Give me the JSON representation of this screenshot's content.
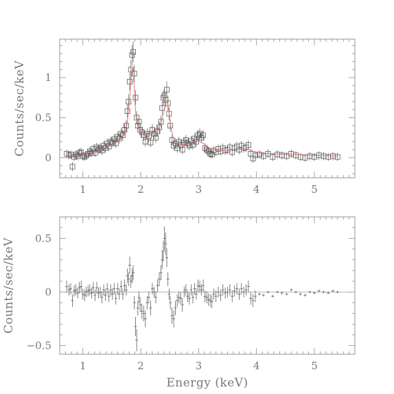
{
  "chart_data": [
    {
      "type": "scatter",
      "panel": "top",
      "xlabel": "",
      "ylabel": "Counts/sec/keV",
      "xlim": [
        0.6,
        5.7
      ],
      "ylim": [
        -0.25,
        1.48
      ],
      "xticks": [
        1,
        2,
        3,
        4,
        5
      ],
      "xticklabels": [
        "1",
        "2",
        "3",
        "4",
        "5"
      ],
      "yticks": [
        0,
        0.5,
        1
      ],
      "yticklabels": [
        "0",
        "0.5",
        "1"
      ],
      "marker": "open-square",
      "model_color": "#e06a6a",
      "points": [
        [
          0.72,
          0.05
        ],
        [
          0.76,
          0.03
        ],
        [
          0.79,
          0.04
        ],
        [
          0.82,
          -0.11
        ],
        [
          0.85,
          0.01
        ],
        [
          0.88,
          0.04
        ],
        [
          0.91,
          0.02
        ],
        [
          0.94,
          0.06
        ],
        [
          0.97,
          0.07
        ],
        [
          1.0,
          0.02
        ],
        [
          1.03,
          0.01
        ],
        [
          1.06,
          0.03
        ],
        [
          1.09,
          0.05
        ],
        [
          1.12,
          0.08
        ],
        [
          1.15,
          0.06
        ],
        [
          1.18,
          0.11
        ],
        [
          1.21,
          0.06
        ],
        [
          1.24,
          0.13
        ],
        [
          1.27,
          0.1
        ],
        [
          1.3,
          0.12
        ],
        [
          1.33,
          0.09
        ],
        [
          1.36,
          0.15
        ],
        [
          1.39,
          0.12
        ],
        [
          1.42,
          0.18
        ],
        [
          1.45,
          0.14
        ],
        [
          1.48,
          0.2
        ],
        [
          1.51,
          0.19
        ],
        [
          1.54,
          0.23
        ],
        [
          1.57,
          0.18
        ],
        [
          1.6,
          0.26
        ],
        [
          1.63,
          0.24
        ],
        [
          1.66,
          0.3
        ],
        [
          1.69,
          0.28
        ],
        [
          1.72,
          0.35
        ],
        [
          1.75,
          0.4
        ],
        [
          1.77,
          0.58
        ],
        [
          1.79,
          0.7
        ],
        [
          1.81,
          0.95
        ],
        [
          1.83,
          1.1
        ],
        [
          1.85,
          1.28
        ],
        [
          1.87,
          1.32
        ],
        [
          1.89,
          1.05
        ],
        [
          1.91,
          0.75
        ],
        [
          1.93,
          0.5
        ],
        [
          1.95,
          0.4
        ],
        [
          1.97,
          0.45
        ],
        [
          1.99,
          0.35
        ],
        [
          2.02,
          0.32
        ],
        [
          2.05,
          0.28
        ],
        [
          2.08,
          0.2
        ],
        [
          2.11,
          0.3
        ],
        [
          2.14,
          0.27
        ],
        [
          2.17,
          0.19
        ],
        [
          2.2,
          0.35
        ],
        [
          2.23,
          0.3
        ],
        [
          2.26,
          0.25
        ],
        [
          2.29,
          0.33
        ],
        [
          2.32,
          0.38
        ],
        [
          2.35,
          0.45
        ],
        [
          2.37,
          0.62
        ],
        [
          2.39,
          0.75
        ],
        [
          2.41,
          0.78
        ],
        [
          2.43,
          0.72
        ],
        [
          2.45,
          0.85
        ],
        [
          2.47,
          0.68
        ],
        [
          2.49,
          0.55
        ],
        [
          2.51,
          0.4
        ],
        [
          2.54,
          0.22
        ],
        [
          2.57,
          0.15
        ],
        [
          2.6,
          0.18
        ],
        [
          2.63,
          0.12
        ],
        [
          2.66,
          0.2
        ],
        [
          2.69,
          0.16
        ],
        [
          2.72,
          0.1
        ],
        [
          2.75,
          0.19
        ],
        [
          2.78,
          0.22
        ],
        [
          2.81,
          0.18
        ],
        [
          2.84,
          0.15
        ],
        [
          2.87,
          0.21
        ],
        [
          2.9,
          0.16
        ],
        [
          2.93,
          0.24
        ],
        [
          2.96,
          0.2
        ],
        [
          2.99,
          0.28
        ],
        [
          3.02,
          0.3
        ],
        [
          3.05,
          0.25
        ],
        [
          3.08,
          0.28
        ],
        [
          3.11,
          0.12
        ],
        [
          3.14,
          0.1
        ],
        [
          3.17,
          0.08
        ],
        [
          3.2,
          0.05
        ],
        [
          3.23,
          0.04
        ],
        [
          3.26,
          0.09
        ],
        [
          3.3,
          0.07
        ],
        [
          3.34,
          0.11
        ],
        [
          3.38,
          0.08
        ],
        [
          3.42,
          0.12
        ],
        [
          3.46,
          0.09
        ],
        [
          3.5,
          0.1
        ],
        [
          3.54,
          0.13
        ],
        [
          3.58,
          0.07
        ],
        [
          3.62,
          0.12
        ],
        [
          3.66,
          0.14
        ],
        [
          3.7,
          0.1
        ],
        [
          3.74,
          0.15
        ],
        [
          3.78,
          0.12
        ],
        [
          3.82,
          0.13
        ],
        [
          3.86,
          0.16
        ],
        [
          3.9,
          0.05
        ],
        [
          3.94,
          -0.01
        ],
        [
          3.98,
          0.03
        ],
        [
          4.05,
          0.04
        ],
        [
          4.12,
          0.02
        ],
        [
          4.2,
          0.05
        ],
        [
          4.28,
          0.01
        ],
        [
          4.36,
          0.04
        ],
        [
          4.44,
          0.03
        ],
        [
          4.52,
          0.02
        ],
        [
          4.6,
          0.05
        ],
        [
          4.68,
          0.03
        ],
        [
          4.76,
          0.01
        ],
        [
          4.84,
          0.0
        ],
        [
          4.92,
          0.02
        ],
        [
          5.0,
          0.01
        ],
        [
          5.08,
          0.03
        ],
        [
          5.16,
          0.02
        ],
        [
          5.24,
          0.01
        ],
        [
          5.32,
          0.02
        ],
        [
          5.4,
          0.01
        ]
      ],
      "model": [
        [
          0.72,
          0.03
        ],
        [
          0.85,
          0.02
        ],
        [
          1.0,
          0.04
        ],
        [
          1.2,
          0.08
        ],
        [
          1.4,
          0.13
        ],
        [
          1.55,
          0.18
        ],
        [
          1.65,
          0.23
        ],
        [
          1.72,
          0.3
        ],
        [
          1.76,
          0.4
        ],
        [
          1.79,
          0.58
        ],
        [
          1.82,
          0.85
        ],
        [
          1.84,
          1.05
        ],
        [
          1.86,
          1.12
        ],
        [
          1.88,
          0.95
        ],
        [
          1.9,
          0.7
        ],
        [
          1.92,
          0.5
        ],
        [
          1.95,
          0.38
        ],
        [
          2.0,
          0.32
        ],
        [
          2.1,
          0.29
        ],
        [
          2.2,
          0.3
        ],
        [
          2.3,
          0.36
        ],
        [
          2.36,
          0.46
        ],
        [
          2.4,
          0.58
        ],
        [
          2.43,
          0.72
        ],
        [
          2.46,
          0.7
        ],
        [
          2.49,
          0.55
        ],
        [
          2.52,
          0.38
        ],
        [
          2.56,
          0.25
        ],
        [
          2.62,
          0.18
        ],
        [
          2.7,
          0.16
        ],
        [
          2.8,
          0.17
        ],
        [
          2.9,
          0.19
        ],
        [
          3.0,
          0.21
        ],
        [
          3.08,
          0.18
        ],
        [
          3.18,
          0.12
        ],
        [
          3.3,
          0.09
        ],
        [
          3.45,
          0.09
        ],
        [
          3.6,
          0.1
        ],
        [
          3.75,
          0.11
        ],
        [
          3.85,
          0.11
        ],
        [
          3.95,
          0.08
        ],
        [
          4.1,
          0.06
        ],
        [
          4.3,
          0.05
        ],
        [
          4.6,
          0.04
        ],
        [
          5.0,
          0.03
        ],
        [
          5.4,
          0.02
        ]
      ]
    },
    {
      "type": "scatter",
      "panel": "bottom",
      "xlabel": "Energy (keV)",
      "ylabel": "Counts/sec/keV",
      "xlim": [
        0.6,
        5.7
      ],
      "ylim": [
        -0.58,
        0.7
      ],
      "xticks": [
        1,
        2,
        3,
        4,
        5
      ],
      "xticklabels": [
        "1",
        "2",
        "3",
        "4",
        "5"
      ],
      "yticks": [
        -0.5,
        0,
        0.5
      ],
      "yticklabels": [
        "−0.5",
        "0",
        "0.5"
      ],
      "marker": "errorbar",
      "points": [
        [
          0.72,
          0.05
        ],
        [
          0.76,
          0.02
        ],
        [
          0.79,
          0.03
        ],
        [
          0.82,
          -0.08
        ],
        [
          0.85,
          0.01
        ],
        [
          0.88,
          0.02
        ],
        [
          0.91,
          -0.01
        ],
        [
          0.94,
          0.04
        ],
        [
          0.97,
          0.05
        ],
        [
          1.0,
          -0.02
        ],
        [
          1.03,
          -0.03
        ],
        [
          1.06,
          0.0
        ],
        [
          1.09,
          0.01
        ],
        [
          1.12,
          0.02
        ],
        [
          1.15,
          -0.01
        ],
        [
          1.18,
          0.04
        ],
        [
          1.21,
          -0.03
        ],
        [
          1.24,
          0.04
        ],
        [
          1.27,
          -0.01
        ],
        [
          1.3,
          0.0
        ],
        [
          1.33,
          -0.05
        ],
        [
          1.36,
          0.02
        ],
        [
          1.39,
          -0.03
        ],
        [
          1.42,
          0.03
        ],
        [
          1.45,
          -0.04
        ],
        [
          1.48,
          0.02
        ],
        [
          1.51,
          -0.02
        ],
        [
          1.54,
          0.03
        ],
        [
          1.57,
          -0.06
        ],
        [
          1.6,
          0.03
        ],
        [
          1.63,
          -0.02
        ],
        [
          1.66,
          0.05
        ],
        [
          1.69,
          -0.02
        ],
        [
          1.72,
          0.06
        ],
        [
          1.75,
          0.02
        ],
        [
          1.77,
          0.15
        ],
        [
          1.79,
          0.12
        ],
        [
          1.81,
          0.25
        ],
        [
          1.83,
          0.1
        ],
        [
          1.85,
          0.15
        ],
        [
          1.87,
          0.18
        ],
        [
          1.89,
          -0.1
        ],
        [
          1.91,
          -0.32
        ],
        [
          1.93,
          -0.45
        ],
        [
          1.95,
          -0.15
        ],
        [
          1.97,
          -0.05
        ],
        [
          1.99,
          -0.12
        ],
        [
          2.02,
          -0.18
        ],
        [
          2.05,
          -0.2
        ],
        [
          2.08,
          -0.25
        ],
        [
          2.11,
          -0.1
        ],
        [
          2.14,
          -0.05
        ],
        [
          2.17,
          -0.15
        ],
        [
          2.2,
          0.03
        ],
        [
          2.23,
          0.0
        ],
        [
          2.26,
          -0.05
        ],
        [
          2.29,
          0.06
        ],
        [
          2.32,
          0.12
        ],
        [
          2.35,
          0.18
        ],
        [
          2.37,
          0.3
        ],
        [
          2.39,
          0.38
        ],
        [
          2.41,
          0.5
        ],
        [
          2.43,
          0.45
        ],
        [
          2.45,
          0.32
        ],
        [
          2.47,
          0.12
        ],
        [
          2.49,
          -0.02
        ],
        [
          2.51,
          -0.1
        ],
        [
          2.54,
          -0.22
        ],
        [
          2.57,
          -0.25
        ],
        [
          2.6,
          -0.15
        ],
        [
          2.63,
          -0.08
        ],
        [
          2.66,
          -0.05
        ],
        [
          2.69,
          -0.06
        ],
        [
          2.72,
          -0.12
        ],
        [
          2.75,
          0.0
        ],
        [
          2.78,
          0.02
        ],
        [
          2.81,
          -0.04
        ],
        [
          2.84,
          -0.06
        ],
        [
          2.87,
          0.02
        ],
        [
          2.9,
          -0.05
        ],
        [
          2.93,
          0.03
        ],
        [
          2.96,
          -0.02
        ],
        [
          2.99,
          0.06
        ],
        [
          3.02,
          0.05
        ],
        [
          3.05,
          0.02
        ],
        [
          3.08,
          0.06
        ],
        [
          3.11,
          -0.04
        ],
        [
          3.14,
          -0.05
        ],
        [
          3.17,
          -0.07
        ],
        [
          3.2,
          -0.08
        ],
        [
          3.23,
          -0.09
        ],
        [
          3.26,
          -0.02
        ],
        [
          3.3,
          -0.04
        ],
        [
          3.34,
          0.0
        ],
        [
          3.38,
          -0.03
        ],
        [
          3.42,
          0.02
        ],
        [
          3.46,
          -0.01
        ],
        [
          3.5,
          0.0
        ],
        [
          3.54,
          0.02
        ],
        [
          3.58,
          -0.04
        ],
        [
          3.62,
          0.01
        ],
        [
          3.66,
          0.03
        ],
        [
          3.7,
          -0.02
        ],
        [
          3.74,
          0.03
        ],
        [
          3.78,
          0.0
        ],
        [
          3.82,
          0.02
        ],
        [
          3.86,
          0.05
        ],
        [
          3.9,
          -0.06
        ],
        [
          3.94,
          -0.08
        ],
        [
          3.98,
          -0.04
        ],
        [
          4.05,
          -0.02
        ],
        [
          4.12,
          -0.03
        ],
        [
          4.2,
          0.0
        ],
        [
          4.28,
          -0.04
        ],
        [
          4.36,
          0.0
        ],
        [
          4.44,
          -0.01
        ],
        [
          4.52,
          -0.02
        ],
        [
          4.6,
          0.02
        ],
        [
          4.68,
          0.0
        ],
        [
          4.76,
          -0.02
        ],
        [
          4.84,
          -0.03
        ],
        [
          4.92,
          0.0
        ],
        [
          5.0,
          -0.01
        ],
        [
          5.08,
          0.01
        ],
        [
          5.16,
          0.0
        ],
        [
          5.24,
          -0.01
        ],
        [
          5.32,
          0.01
        ],
        [
          5.4,
          0.0
        ]
      ]
    }
  ]
}
